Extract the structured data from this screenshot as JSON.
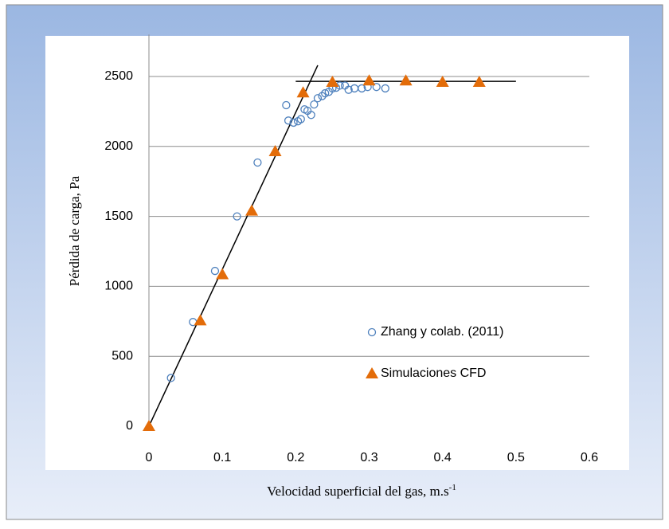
{
  "chart_data": {
    "type": "scatter",
    "x_label": "Velocidad superficial del gas, m.s",
    "x_label_sup": "-1",
    "y_label": "Pérdida de carga, Pa",
    "xlim": [
      0,
      0.6
    ],
    "xticks": [
      0,
      0.1,
      0.2,
      0.3,
      0.4,
      0.5,
      0.6
    ],
    "ylim": [
      0,
      2800
    ],
    "yticks": [
      0,
      500,
      1000,
      1500,
      2000,
      2500
    ],
    "grid": true,
    "legend": "right",
    "series": [
      {
        "name": "Zhang y colab. (2011)",
        "color": "#4f81bd",
        "marker": "circle",
        "x": [
          0.03,
          0.06,
          0.09,
          0.12,
          0.148,
          0.187,
          0.19,
          0.197,
          0.203,
          0.207,
          0.212,
          0.216,
          0.221,
          0.225,
          0.23,
          0.236,
          0.24,
          0.245,
          0.25,
          0.255,
          0.26,
          0.267,
          0.272,
          0.28,
          0.29,
          0.298,
          0.31,
          0.322
        ],
        "values": [
          345,
          745,
          1110,
          1500,
          1885,
          2295,
          2185,
          2170,
          2180,
          2195,
          2265,
          2255,
          2225,
          2300,
          2345,
          2360,
          2380,
          2390,
          2415,
          2420,
          2435,
          2435,
          2405,
          2415,
          2415,
          2425,
          2425,
          2415
        ]
      },
      {
        "name": "Simulaciones CFD",
        "color": "#e36c09",
        "marker": "triangle",
        "x": [
          0,
          0.07,
          0.1,
          0.14,
          0.172,
          0.21,
          0.25,
          0.3,
          0.35,
          0.4,
          0.45
        ],
        "values": [
          0,
          755,
          1085,
          1540,
          1965,
          2385,
          2460,
          2470,
          2470,
          2460,
          2460
        ]
      }
    ],
    "lines": [
      {
        "color": "#000000",
        "x": [
          0,
          0.23
        ],
        "values": [
          0,
          2580
        ]
      },
      {
        "color": "#000000",
        "x": [
          0.2,
          0.5
        ],
        "values": [
          2465,
          2465
        ]
      }
    ]
  }
}
